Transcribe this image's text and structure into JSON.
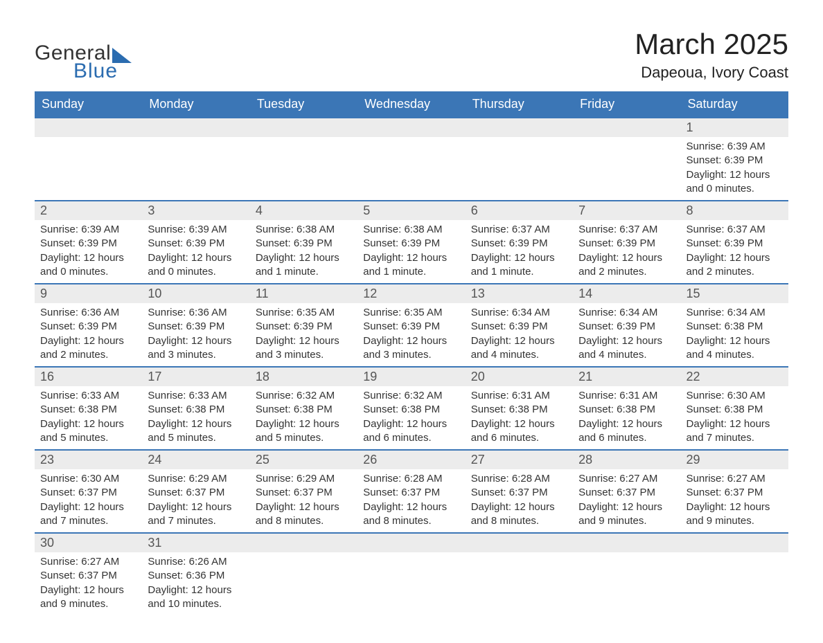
{
  "brand": {
    "word1": "General",
    "word2": "Blue",
    "brand_color": "#2b6cb0"
  },
  "title": "March 2025",
  "location": "Dapeoua, Ivory Coast",
  "header_bg": "#3b76b6",
  "header_fg": "#ffffff",
  "daynum_bg": "#ececec",
  "row_border": "#3b76b6",
  "weekdays": [
    "Sunday",
    "Monday",
    "Tuesday",
    "Wednesday",
    "Thursday",
    "Friday",
    "Saturday"
  ],
  "labels": {
    "sunrise": "Sunrise:",
    "sunset": "Sunset:",
    "daylight": "Daylight:"
  },
  "weeks": [
    [
      null,
      null,
      null,
      null,
      null,
      null,
      {
        "n": "1",
        "sr": "6:39 AM",
        "ss": "6:39 PM",
        "dl": "12 hours and 0 minutes."
      }
    ],
    [
      {
        "n": "2",
        "sr": "6:39 AM",
        "ss": "6:39 PM",
        "dl": "12 hours and 0 minutes."
      },
      {
        "n": "3",
        "sr": "6:39 AM",
        "ss": "6:39 PM",
        "dl": "12 hours and 0 minutes."
      },
      {
        "n": "4",
        "sr": "6:38 AM",
        "ss": "6:39 PM",
        "dl": "12 hours and 1 minute."
      },
      {
        "n": "5",
        "sr": "6:38 AM",
        "ss": "6:39 PM",
        "dl": "12 hours and 1 minute."
      },
      {
        "n": "6",
        "sr": "6:37 AM",
        "ss": "6:39 PM",
        "dl": "12 hours and 1 minute."
      },
      {
        "n": "7",
        "sr": "6:37 AM",
        "ss": "6:39 PM",
        "dl": "12 hours and 2 minutes."
      },
      {
        "n": "8",
        "sr": "6:37 AM",
        "ss": "6:39 PM",
        "dl": "12 hours and 2 minutes."
      }
    ],
    [
      {
        "n": "9",
        "sr": "6:36 AM",
        "ss": "6:39 PM",
        "dl": "12 hours and 2 minutes."
      },
      {
        "n": "10",
        "sr": "6:36 AM",
        "ss": "6:39 PM",
        "dl": "12 hours and 3 minutes."
      },
      {
        "n": "11",
        "sr": "6:35 AM",
        "ss": "6:39 PM",
        "dl": "12 hours and 3 minutes."
      },
      {
        "n": "12",
        "sr": "6:35 AM",
        "ss": "6:39 PM",
        "dl": "12 hours and 3 minutes."
      },
      {
        "n": "13",
        "sr": "6:34 AM",
        "ss": "6:39 PM",
        "dl": "12 hours and 4 minutes."
      },
      {
        "n": "14",
        "sr": "6:34 AM",
        "ss": "6:39 PM",
        "dl": "12 hours and 4 minutes."
      },
      {
        "n": "15",
        "sr": "6:34 AM",
        "ss": "6:38 PM",
        "dl": "12 hours and 4 minutes."
      }
    ],
    [
      {
        "n": "16",
        "sr": "6:33 AM",
        "ss": "6:38 PM",
        "dl": "12 hours and 5 minutes."
      },
      {
        "n": "17",
        "sr": "6:33 AM",
        "ss": "6:38 PM",
        "dl": "12 hours and 5 minutes."
      },
      {
        "n": "18",
        "sr": "6:32 AM",
        "ss": "6:38 PM",
        "dl": "12 hours and 5 minutes."
      },
      {
        "n": "19",
        "sr": "6:32 AM",
        "ss": "6:38 PM",
        "dl": "12 hours and 6 minutes."
      },
      {
        "n": "20",
        "sr": "6:31 AM",
        "ss": "6:38 PM",
        "dl": "12 hours and 6 minutes."
      },
      {
        "n": "21",
        "sr": "6:31 AM",
        "ss": "6:38 PM",
        "dl": "12 hours and 6 minutes."
      },
      {
        "n": "22",
        "sr": "6:30 AM",
        "ss": "6:38 PM",
        "dl": "12 hours and 7 minutes."
      }
    ],
    [
      {
        "n": "23",
        "sr": "6:30 AM",
        "ss": "6:37 PM",
        "dl": "12 hours and 7 minutes."
      },
      {
        "n": "24",
        "sr": "6:29 AM",
        "ss": "6:37 PM",
        "dl": "12 hours and 7 minutes."
      },
      {
        "n": "25",
        "sr": "6:29 AM",
        "ss": "6:37 PM",
        "dl": "12 hours and 8 minutes."
      },
      {
        "n": "26",
        "sr": "6:28 AM",
        "ss": "6:37 PM",
        "dl": "12 hours and 8 minutes."
      },
      {
        "n": "27",
        "sr": "6:28 AM",
        "ss": "6:37 PM",
        "dl": "12 hours and 8 minutes."
      },
      {
        "n": "28",
        "sr": "6:27 AM",
        "ss": "6:37 PM",
        "dl": "12 hours and 9 minutes."
      },
      {
        "n": "29",
        "sr": "6:27 AM",
        "ss": "6:37 PM",
        "dl": "12 hours and 9 minutes."
      }
    ],
    [
      {
        "n": "30",
        "sr": "6:27 AM",
        "ss": "6:37 PM",
        "dl": "12 hours and 9 minutes."
      },
      {
        "n": "31",
        "sr": "6:26 AM",
        "ss": "6:36 PM",
        "dl": "12 hours and 10 minutes."
      },
      null,
      null,
      null,
      null,
      null
    ]
  ]
}
